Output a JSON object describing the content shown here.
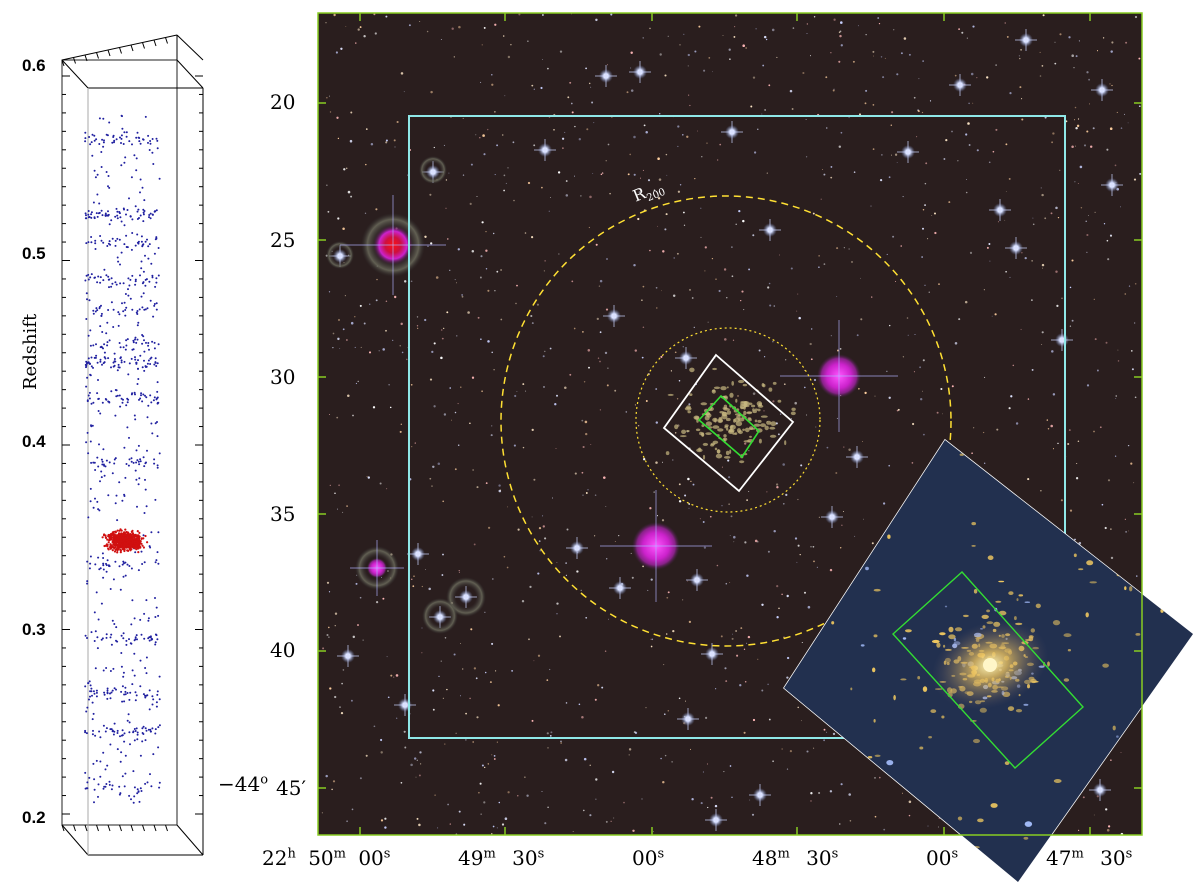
{
  "left_panel": {
    "axis_title": "Redshift",
    "ticks": [
      "0.6",
      "0.5",
      "0.4",
      "0.3",
      "0.2"
    ],
    "range": [
      0.2,
      0.6
    ],
    "cluster_redshift": 0.348,
    "point_colors": {
      "field": "#2020a0",
      "cluster": "#d01010"
    }
  },
  "sky_image": {
    "dec_labels": [
      "20",
      "25",
      "30",
      "35",
      "40",
      "45′"
    ],
    "dec_degree_prefix": "−44",
    "dec_degree_unit": "o",
    "ra_labels": [
      {
        "h": "22",
        "hu": "h",
        "m": "50",
        "mu": "m",
        "s": "00",
        "su": "s"
      },
      {
        "m": "49",
        "mu": "m",
        "s": "30",
        "su": "s"
      },
      {
        "s": "00",
        "su": "s"
      },
      {
        "m": "48",
        "mu": "m",
        "s": "30",
        "su": "s"
      },
      {
        "s": "00",
        "su": "s"
      },
      {
        "m": "47",
        "mu": "m",
        "s": "30",
        "su": "s"
      }
    ],
    "r200_label": "R",
    "r200_sub": "200",
    "colors": {
      "frame": "#88cc22",
      "cyan_box": "#8fe8e8",
      "r200_circle": "#ffe033",
      "white_box": "#ffffff",
      "green_box": "#33dd33",
      "background": "#2a1e1e"
    }
  }
}
